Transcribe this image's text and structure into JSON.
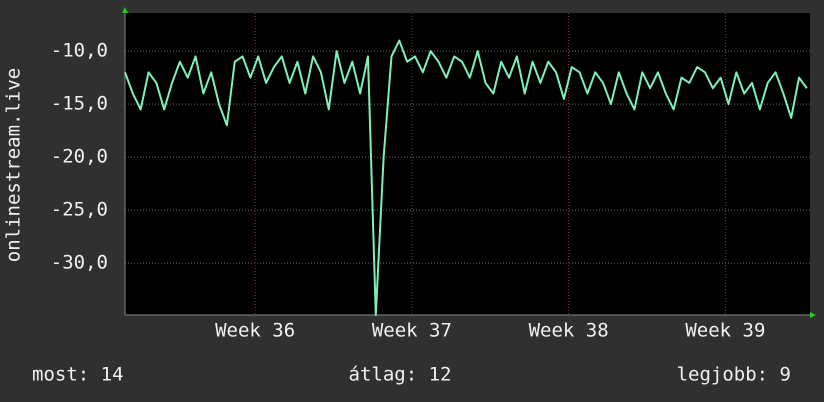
{
  "chart_data": {
    "type": "line",
    "ylabel": "onlinestream.live",
    "xlim": [
      35.17,
      39.54
    ],
    "xticks": [
      {
        "value": 36,
        "label": "Week 36"
      },
      {
        "value": 37,
        "label": "Week 37"
      },
      {
        "value": 38,
        "label": "Week 38"
      },
      {
        "value": 39,
        "label": "Week 39"
      }
    ],
    "ylim": [
      -34.9,
      -6.4
    ],
    "yticks": [
      {
        "value": -30,
        "label": "-30,0"
      },
      {
        "value": -25,
        "label": "-25,0"
      },
      {
        "value": -20,
        "label": "-20,0"
      },
      {
        "value": -15,
        "label": "-15,0"
      },
      {
        "value": -10,
        "label": "-10,0"
      }
    ],
    "grid": true,
    "stats": [
      "most: 14",
      "átlag: 12",
      "legjobb: 9"
    ],
    "series": [
      {
        "color": "#7ff0b8",
        "x": [
          35.17,
          35.22,
          35.27,
          35.32,
          35.37,
          35.42,
          35.47,
          35.52,
          35.57,
          35.62,
          35.67,
          35.72,
          35.77,
          35.82,
          35.87,
          35.92,
          35.97,
          36.02,
          36.07,
          36.12,
          36.17,
          36.22,
          36.27,
          36.32,
          36.37,
          36.42,
          36.47,
          36.52,
          36.57,
          36.62,
          36.67,
          36.72,
          36.77,
          36.82,
          36.87,
          36.92,
          36.97,
          37.02,
          37.07,
          37.12,
          37.17,
          37.22,
          37.27,
          37.32,
          37.37,
          37.42,
          37.47,
          37.52,
          37.57,
          37.62,
          37.67,
          37.72,
          37.77,
          37.82,
          37.87,
          37.92,
          37.97,
          38.02,
          38.07,
          38.12,
          38.17,
          38.22,
          38.27,
          38.32,
          38.37,
          38.42,
          38.47,
          38.52,
          38.57,
          38.62,
          38.67,
          38.72,
          38.77,
          38.82,
          38.87,
          38.92,
          38.97,
          39.02,
          39.07,
          39.12,
          39.17,
          39.22,
          39.27,
          39.32,
          39.37,
          39.42,
          39.47,
          39.52
        ],
        "values": [
          -12,
          -14,
          -15.5,
          -12,
          -13,
          -15.5,
          -13,
          -11,
          -12.5,
          -10.5,
          -14,
          -12,
          -15,
          -17,
          -11,
          -10.5,
          -12.5,
          -10.5,
          -13,
          -11.5,
          -10.5,
          -13,
          -11,
          -14,
          -10.5,
          -12,
          -15.5,
          -10,
          -13,
          -11,
          -14,
          -10.5,
          -34.9,
          -20,
          -10.5,
          -9,
          -11,
          -10.5,
          -12,
          -10,
          -11,
          -12.5,
          -10.5,
          -11,
          -12.5,
          -10,
          -13,
          -14,
          -11,
          -12.5,
          -10.5,
          -14,
          -11,
          -13,
          -11,
          -12,
          -14.5,
          -11.5,
          -12,
          -14,
          -12,
          -13,
          -15,
          -12,
          -14,
          -15.5,
          -12,
          -13.5,
          -12,
          -14,
          -15.5,
          -12.5,
          -13,
          -11.5,
          -12,
          -13.5,
          -12.5,
          -15,
          -12,
          -14,
          -13,
          -15.5,
          -13,
          -12,
          -14,
          -16.3,
          -12.5,
          -13.5
        ]
      }
    ]
  }
}
